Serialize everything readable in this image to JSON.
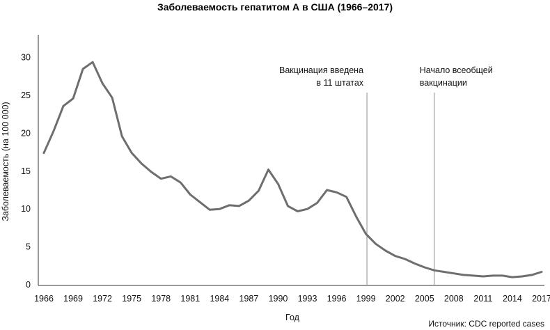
{
  "chart_data": {
    "type": "line",
    "title": "Заболеваемость гепатитом А в США (1966–2017)",
    "xlabel": "Год",
    "ylabel": "Заболеваемость (на 100 000)",
    "source": "Источник: CDC reported cases",
    "xlim": [
      1966,
      2017
    ],
    "ylim": [
      0,
      33
    ],
    "x_ticks": [
      "1966",
      "1969",
      "1972",
      "1975",
      "1978",
      "1981",
      "1984",
      "1987",
      "1990",
      "1993",
      "1996",
      "1999",
      "2002",
      "2005",
      "2008",
      "2011",
      "2014",
      "2017"
    ],
    "y_ticks": [
      "0",
      "5",
      "10",
      "15",
      "20",
      "25",
      "30"
    ],
    "grid": false,
    "line_color": "#6e6e6e",
    "series": [
      {
        "x": [
          1966,
          1967,
          1968,
          1969,
          1970,
          1971,
          1972,
          1973,
          1974,
          1975,
          1976,
          1977,
          1978,
          1979,
          1980,
          1981,
          1982,
          1983,
          1984,
          1985,
          1986,
          1987,
          1988,
          1989,
          1990,
          1991,
          1992,
          1993,
          1994,
          1995,
          1996,
          1997,
          1998,
          1999,
          2000,
          2001,
          2002,
          2003,
          2004,
          2005,
          2006,
          2007,
          2008,
          2009,
          2010,
          2011,
          2012,
          2013,
          2014,
          2015,
          2016,
          2017
        ],
        "y": [
          17.4,
          20.3,
          23.6,
          24.6,
          28.5,
          29.4,
          26.6,
          24.7,
          19.6,
          17.4,
          16.0,
          14.9,
          14.0,
          14.3,
          13.5,
          11.9,
          10.9,
          9.9,
          10.0,
          10.5,
          10.4,
          11.1,
          12.4,
          15.2,
          13.3,
          10.4,
          9.7,
          10.0,
          10.8,
          12.5,
          12.2,
          11.6,
          9.0,
          6.7,
          5.4,
          4.5,
          3.8,
          3.4,
          2.8,
          2.3,
          1.9,
          1.7,
          1.5,
          1.3,
          1.2,
          1.1,
          1.2,
          1.2,
          1.0,
          1.1,
          1.3,
          1.7
        ]
      }
    ],
    "annotations": [
      {
        "x": 1999.1,
        "text_lines": [
          "Вакцинация введена",
          "в 11 штатах"
        ],
        "align": "right"
      },
      {
        "x": 2006.0,
        "text_lines": [
          "Начало всеобщей",
          "вакцинации"
        ],
        "align": "left"
      }
    ]
  }
}
